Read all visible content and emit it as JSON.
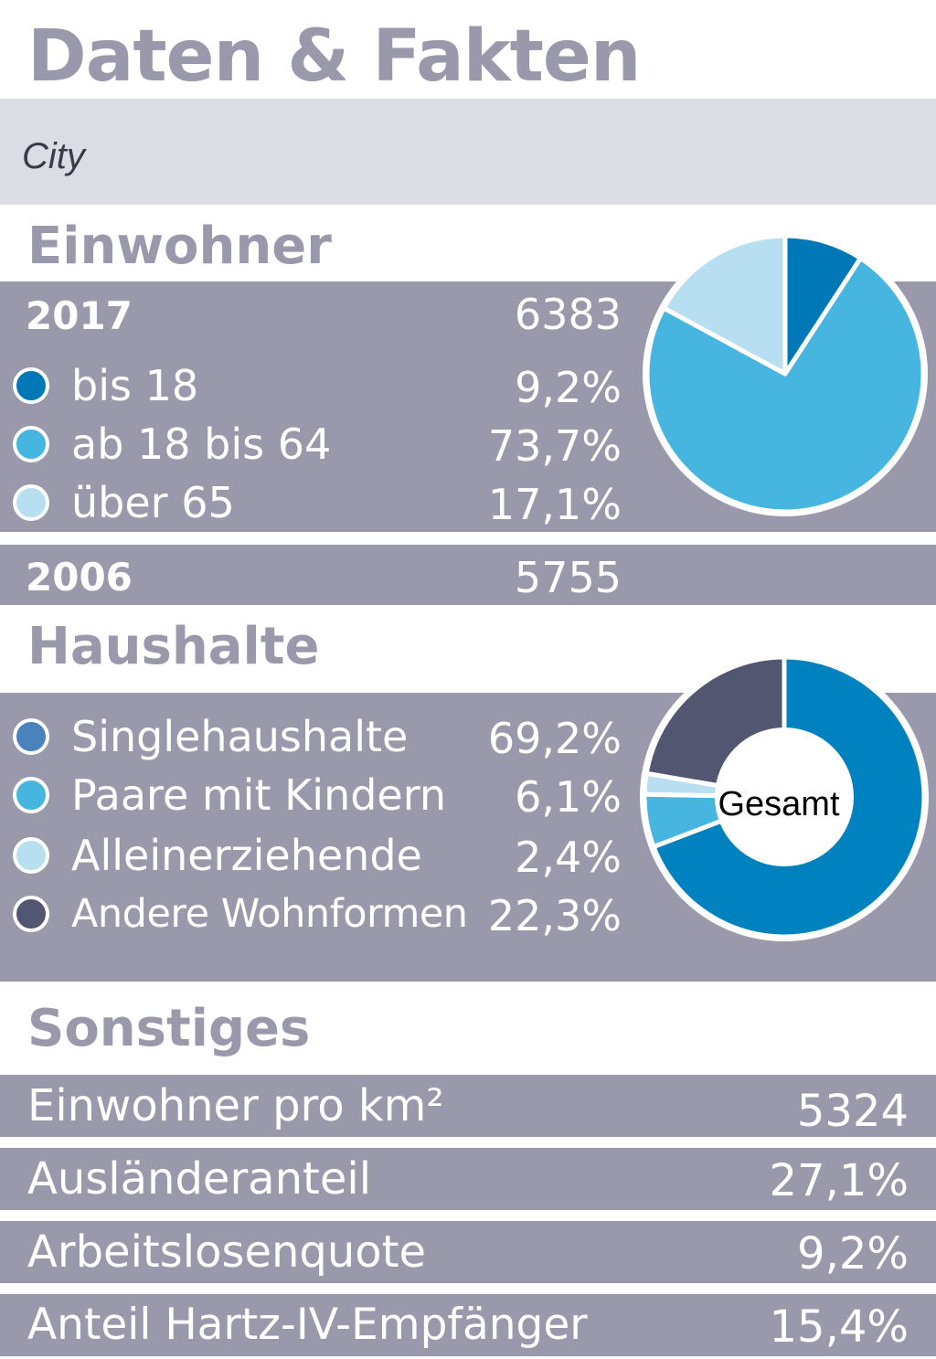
{
  "header": {
    "title": "Daten & Fakten",
    "district": "City"
  },
  "einwohner": {
    "heading": "Einwohner",
    "rows": [
      {
        "label": "2017",
        "value": "6383"
      },
      {
        "label": "2006",
        "value": "5755"
      }
    ],
    "groups": [
      {
        "label": "bis 18",
        "value": "9,2%",
        "color": "#0078b8"
      },
      {
        "label": "ab 18 bis 64",
        "value": "73,7%",
        "color": "#46b5df"
      },
      {
        "label": "über 65",
        "value": "17,1%",
        "color": "#b8dff1"
      }
    ]
  },
  "haushalte": {
    "heading": "Haushalte",
    "center_label": "Gesamt",
    "groups": [
      {
        "label": "Singlehaushalte",
        "value": "69,2%",
        "color": "#0082c0"
      },
      {
        "label": "Paare mit Kindern",
        "value": "6,1%",
        "color": "#46b5df"
      },
      {
        "label": "Alleinerziehende",
        "value": "2,4%",
        "color": "#b8dff1"
      },
      {
        "label": "Andere Wohnformen",
        "value": "22,3%",
        "color": "#535671"
      }
    ]
  },
  "sonstiges": {
    "heading": "Sonstiges",
    "rows": [
      {
        "label": "Einwohner pro km²",
        "value": "5324"
      },
      {
        "label": "Ausländeranteil",
        "value": "27,1%"
      },
      {
        "label": "Arbeitslosenquote",
        "value": "9,2%"
      },
      {
        "label": "Anteil Hartz-IV-Empfänger",
        "value": "15,4%"
      }
    ]
  },
  "chart_data": [
    {
      "type": "pie",
      "categories": [
        "bis 18",
        "ab 18 bis 64",
        "über 65"
      ],
      "values": [
        9.2,
        73.7,
        17.1
      ],
      "colors": [
        "#0078b8",
        "#46b5df",
        "#b8dff1"
      ]
    },
    {
      "type": "pie",
      "variant": "donut",
      "center_label": "Gesamt",
      "categories": [
        "Singlehaushalte",
        "Paare mit Kindern",
        "Alleinerziehende",
        "Andere Wohnformen"
      ],
      "values": [
        69.2,
        6.1,
        2.4,
        22.3
      ],
      "colors": [
        "#0082c0",
        "#46b5df",
        "#b8dff1",
        "#535671"
      ]
    }
  ]
}
